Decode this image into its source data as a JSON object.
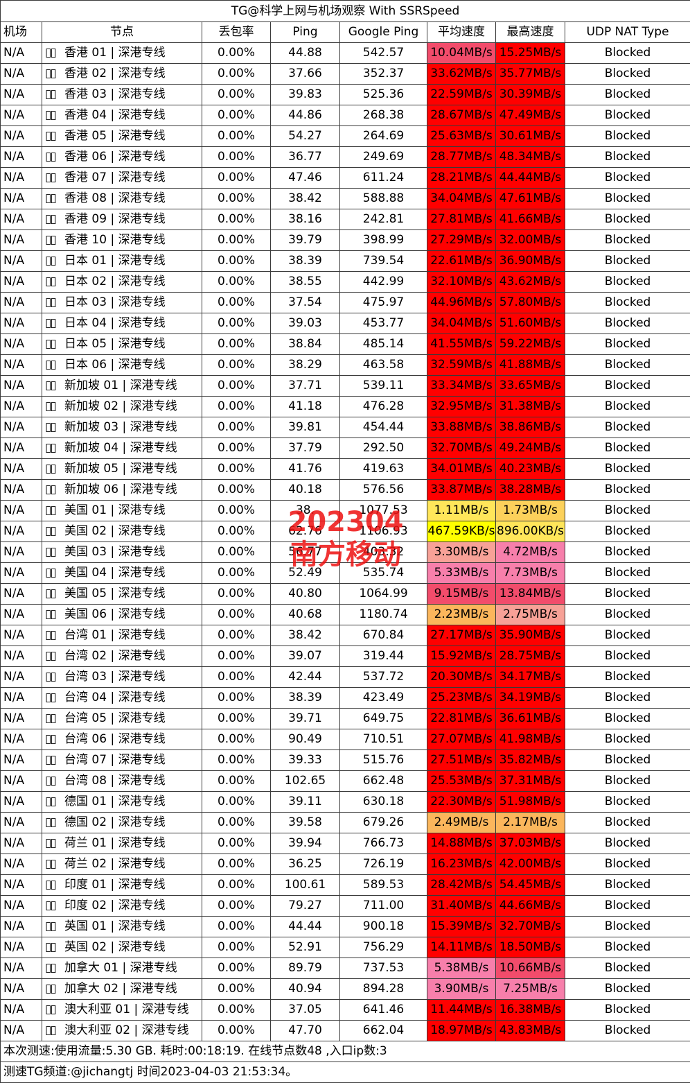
{
  "title": "TG@科学上网与机场观察 With SSRSpeed",
  "headers": [
    "机场",
    "节点",
    "丢包率",
    "Ping",
    "Google Ping",
    "平均速度",
    "最高速度",
    "UDP NAT Type"
  ],
  "flag_glyph": "▯▯",
  "colors": {
    "red": "#ff0000",
    "pink_dark": "#f24c6b",
    "pink": "#f77fab",
    "salmon": "#f7a197",
    "orange": "#fbb65c",
    "gold": "#fcd15b",
    "yellow": "#ffff00",
    "yellow2": "#ffe65a"
  },
  "rows": [
    {
      "airport": "N/A",
      "node": "香港 01 | 深港专线",
      "loss": "0.00%",
      "ping": "44.88",
      "gping": "542.57",
      "avg": "10.04MB/s",
      "max": "15.25MB/s",
      "nat": "Blocked",
      "avg_color": "pink_dark",
      "max_color": "red"
    },
    {
      "airport": "N/A",
      "node": "香港 02 | 深港专线",
      "loss": "0.00%",
      "ping": "37.66",
      "gping": "352.37",
      "avg": "33.62MB/s",
      "max": "35.77MB/s",
      "nat": "Blocked",
      "avg_color": "red",
      "max_color": "red"
    },
    {
      "airport": "N/A",
      "node": "香港 03 | 深港专线",
      "loss": "0.00%",
      "ping": "39.83",
      "gping": "525.36",
      "avg": "22.59MB/s",
      "max": "30.39MB/s",
      "nat": "Blocked",
      "avg_color": "red",
      "max_color": "red"
    },
    {
      "airport": "N/A",
      "node": "香港 04 | 深港专线",
      "loss": "0.00%",
      "ping": "44.86",
      "gping": "268.38",
      "avg": "28.67MB/s",
      "max": "47.49MB/s",
      "nat": "Blocked",
      "avg_color": "red",
      "max_color": "red"
    },
    {
      "airport": "N/A",
      "node": "香港 05 | 深港专线",
      "loss": "0.00%",
      "ping": "54.27",
      "gping": "264.69",
      "avg": "25.63MB/s",
      "max": "30.61MB/s",
      "nat": "Blocked",
      "avg_color": "red",
      "max_color": "red"
    },
    {
      "airport": "N/A",
      "node": "香港 06 | 深港专线",
      "loss": "0.00%",
      "ping": "36.77",
      "gping": "249.69",
      "avg": "28.77MB/s",
      "max": "48.34MB/s",
      "nat": "Blocked",
      "avg_color": "red",
      "max_color": "red"
    },
    {
      "airport": "N/A",
      "node": "香港 07 | 深港专线",
      "loss": "0.00%",
      "ping": "47.46",
      "gping": "611.24",
      "avg": "28.21MB/s",
      "max": "44.44MB/s",
      "nat": "Blocked",
      "avg_color": "red",
      "max_color": "red"
    },
    {
      "airport": "N/A",
      "node": "香港 08 | 深港专线",
      "loss": "0.00%",
      "ping": "38.42",
      "gping": "588.88",
      "avg": "34.04MB/s",
      "max": "47.61MB/s",
      "nat": "Blocked",
      "avg_color": "red",
      "max_color": "red"
    },
    {
      "airport": "N/A",
      "node": "香港 09 | 深港专线",
      "loss": "0.00%",
      "ping": "38.16",
      "gping": "242.81",
      "avg": "27.81MB/s",
      "max": "41.66MB/s",
      "nat": "Blocked",
      "avg_color": "red",
      "max_color": "red"
    },
    {
      "airport": "N/A",
      "node": "香港 10 | 深港专线",
      "loss": "0.00%",
      "ping": "39.79",
      "gping": "398.99",
      "avg": "27.29MB/s",
      "max": "32.00MB/s",
      "nat": "Blocked",
      "avg_color": "red",
      "max_color": "red"
    },
    {
      "airport": "N/A",
      "node": "日本 01 | 深港专线",
      "loss": "0.00%",
      "ping": "38.39",
      "gping": "739.54",
      "avg": "22.61MB/s",
      "max": "36.90MB/s",
      "nat": "Blocked",
      "avg_color": "red",
      "max_color": "red"
    },
    {
      "airport": "N/A",
      "node": "日本 02 | 深港专线",
      "loss": "0.00%",
      "ping": "38.55",
      "gping": "442.99",
      "avg": "32.10MB/s",
      "max": "43.62MB/s",
      "nat": "Blocked",
      "avg_color": "red",
      "max_color": "red"
    },
    {
      "airport": "N/A",
      "node": "日本 03 | 深港专线",
      "loss": "0.00%",
      "ping": "37.54",
      "gping": "475.97",
      "avg": "44.96MB/s",
      "max": "57.80MB/s",
      "nat": "Blocked",
      "avg_color": "red",
      "max_color": "red"
    },
    {
      "airport": "N/A",
      "node": "日本 04 | 深港专线",
      "loss": "0.00%",
      "ping": "39.03",
      "gping": "453.77",
      "avg": "34.04MB/s",
      "max": "51.60MB/s",
      "nat": "Blocked",
      "avg_color": "red",
      "max_color": "red"
    },
    {
      "airport": "N/A",
      "node": "日本 05 | 深港专线",
      "loss": "0.00%",
      "ping": "38.84",
      "gping": "485.14",
      "avg": "41.55MB/s",
      "max": "59.22MB/s",
      "nat": "Blocked",
      "avg_color": "red",
      "max_color": "red"
    },
    {
      "airport": "N/A",
      "node": "日本 06 | 深港专线",
      "loss": "0.00%",
      "ping": "38.29",
      "gping": "463.58",
      "avg": "32.59MB/s",
      "max": "41.88MB/s",
      "nat": "Blocked",
      "avg_color": "red",
      "max_color": "red"
    },
    {
      "airport": "N/A",
      "node": "新加坡 01 | 深港专线",
      "loss": "0.00%",
      "ping": "37.71",
      "gping": "539.11",
      "avg": "33.34MB/s",
      "max": "33.65MB/s",
      "nat": "Blocked",
      "avg_color": "red",
      "max_color": "red"
    },
    {
      "airport": "N/A",
      "node": "新加坡 02 | 深港专线",
      "loss": "0.00%",
      "ping": "41.18",
      "gping": "476.28",
      "avg": "32.95MB/s",
      "max": "31.38MB/s",
      "nat": "Blocked",
      "avg_color": "red",
      "max_color": "red"
    },
    {
      "airport": "N/A",
      "node": "新加坡 03 | 深港专线",
      "loss": "0.00%",
      "ping": "39.81",
      "gping": "454.44",
      "avg": "33.88MB/s",
      "max": "38.86MB/s",
      "nat": "Blocked",
      "avg_color": "red",
      "max_color": "red"
    },
    {
      "airport": "N/A",
      "node": "新加坡 04 | 深港专线",
      "loss": "0.00%",
      "ping": "37.79",
      "gping": "292.50",
      "avg": "32.70MB/s",
      "max": "49.24MB/s",
      "nat": "Blocked",
      "avg_color": "red",
      "max_color": "red"
    },
    {
      "airport": "N/A",
      "node": "新加坡 05 | 深港专线",
      "loss": "0.00%",
      "ping": "41.76",
      "gping": "419.63",
      "avg": "34.01MB/s",
      "max": "40.23MB/s",
      "nat": "Blocked",
      "avg_color": "red",
      "max_color": "red"
    },
    {
      "airport": "N/A",
      "node": "新加坡 06 | 深港专线",
      "loss": "0.00%",
      "ping": "40.18",
      "gping": "576.56",
      "avg": "33.87MB/s",
      "max": "38.28MB/s",
      "nat": "Blocked",
      "avg_color": "red",
      "max_color": "red"
    },
    {
      "airport": "N/A",
      "node": "美国 01 | 深港专线",
      "loss": "0.00%",
      "ping": "38.",
      "gping": "1077.53",
      "avg": "1.11MB/s",
      "max": "1.73MB/s",
      "nat": "Blocked",
      "avg_color": "yellow2",
      "max_color": "gold"
    },
    {
      "airport": "N/A",
      "node": "美国 02 | 深港专线",
      "loss": "0.00%",
      "ping": "62.76",
      "gping": "1106.93",
      "avg": "467.59KB/s",
      "max": "896.00KB/s",
      "nat": "Blocked",
      "avg_color": "yellow",
      "max_color": "yellow2"
    },
    {
      "airport": "N/A",
      "node": "美国 03 | 深港专线",
      "loss": "0.00%",
      "ping": "56.77",
      "gping": "403.32",
      "avg": "3.30MB/s",
      "max": "4.72MB/s",
      "nat": "Blocked",
      "avg_color": "salmon",
      "max_color": "pink"
    },
    {
      "airport": "N/A",
      "node": "美国 04 | 深港专线",
      "loss": "0.00%",
      "ping": "52.49",
      "gping": "535.74",
      "avg": "5.33MB/s",
      "max": "7.73MB/s",
      "nat": "Blocked",
      "avg_color": "pink",
      "max_color": "pink"
    },
    {
      "airport": "N/A",
      "node": "美国 05 | 深港专线",
      "loss": "0.00%",
      "ping": "40.80",
      "gping": "1064.99",
      "avg": "9.15MB/s",
      "max": "13.84MB/s",
      "nat": "Blocked",
      "avg_color": "pink_dark",
      "max_color": "pink_dark"
    },
    {
      "airport": "N/A",
      "node": "美国 06 | 深港专线",
      "loss": "0.00%",
      "ping": "40.68",
      "gping": "1180.74",
      "avg": "2.23MB/s",
      "max": "2.75MB/s",
      "nat": "Blocked",
      "avg_color": "orange",
      "max_color": "salmon"
    },
    {
      "airport": "N/A",
      "node": "台湾 01 | 深港专线",
      "loss": "0.00%",
      "ping": "38.42",
      "gping": "670.84",
      "avg": "27.17MB/s",
      "max": "35.90MB/s",
      "nat": "Blocked",
      "avg_color": "red",
      "max_color": "red"
    },
    {
      "airport": "N/A",
      "node": "台湾 02 | 深港专线",
      "loss": "0.00%",
      "ping": "39.07",
      "gping": "319.44",
      "avg": "15.92MB/s",
      "max": "28.75MB/s",
      "nat": "Blocked",
      "avg_color": "red",
      "max_color": "red"
    },
    {
      "airport": "N/A",
      "node": "台湾 03 | 深港专线",
      "loss": "0.00%",
      "ping": "42.44",
      "gping": "537.72",
      "avg": "20.30MB/s",
      "max": "34.17MB/s",
      "nat": "Blocked",
      "avg_color": "red",
      "max_color": "red"
    },
    {
      "airport": "N/A",
      "node": "台湾 04 | 深港专线",
      "loss": "0.00%",
      "ping": "38.39",
      "gping": "423.49",
      "avg": "25.23MB/s",
      "max": "34.19MB/s",
      "nat": "Blocked",
      "avg_color": "red",
      "max_color": "red"
    },
    {
      "airport": "N/A",
      "node": "台湾 05 | 深港专线",
      "loss": "0.00%",
      "ping": "39.71",
      "gping": "649.75",
      "avg": "22.81MB/s",
      "max": "36.61MB/s",
      "nat": "Blocked",
      "avg_color": "red",
      "max_color": "red"
    },
    {
      "airport": "N/A",
      "node": "台湾 06 | 深港专线",
      "loss": "0.00%",
      "ping": "90.49",
      "gping": "710.51",
      "avg": "27.07MB/s",
      "max": "41.98MB/s",
      "nat": "Blocked",
      "avg_color": "red",
      "max_color": "red"
    },
    {
      "airport": "N/A",
      "node": "台湾 07 | 深港专线",
      "loss": "0.00%",
      "ping": "39.33",
      "gping": "515.76",
      "avg": "27.51MB/s",
      "max": "35.82MB/s",
      "nat": "Blocked",
      "avg_color": "red",
      "max_color": "red"
    },
    {
      "airport": "N/A",
      "node": "台湾 08 | 深港专线",
      "loss": "0.00%",
      "ping": "102.65",
      "gping": "662.48",
      "avg": "25.53MB/s",
      "max": "37.31MB/s",
      "nat": "Blocked",
      "avg_color": "red",
      "max_color": "red"
    },
    {
      "airport": "N/A",
      "node": "德国 01 | 深港专线",
      "loss": "0.00%",
      "ping": "39.11",
      "gping": "630.18",
      "avg": "22.30MB/s",
      "max": "51.98MB/s",
      "nat": "Blocked",
      "avg_color": "red",
      "max_color": "red"
    },
    {
      "airport": "N/A",
      "node": "德国 02 | 深港专线",
      "loss": "0.00%",
      "ping": "39.58",
      "gping": "679.26",
      "avg": "2.49MB/s",
      "max": "2.17MB/s",
      "nat": "Blocked",
      "avg_color": "orange",
      "max_color": "orange"
    },
    {
      "airport": "N/A",
      "node": "荷兰 01 | 深港专线",
      "loss": "0.00%",
      "ping": "39.94",
      "gping": "766.73",
      "avg": "14.88MB/s",
      "max": "37.03MB/s",
      "nat": "Blocked",
      "avg_color": "red",
      "max_color": "red"
    },
    {
      "airport": "N/A",
      "node": "荷兰 02 | 深港专线",
      "loss": "0.00%",
      "ping": "36.25",
      "gping": "726.19",
      "avg": "16.23MB/s",
      "max": "42.00MB/s",
      "nat": "Blocked",
      "avg_color": "red",
      "max_color": "red"
    },
    {
      "airport": "N/A",
      "node": "印度 01 | 深港专线",
      "loss": "0.00%",
      "ping": "100.61",
      "gping": "589.53",
      "avg": "28.42MB/s",
      "max": "54.45MB/s",
      "nat": "Blocked",
      "avg_color": "red",
      "max_color": "red"
    },
    {
      "airport": "N/A",
      "node": "印度 02 | 深港专线",
      "loss": "0.00%",
      "ping": "79.27",
      "gping": "711.00",
      "avg": "31.40MB/s",
      "max": "44.66MB/s",
      "nat": "Blocked",
      "avg_color": "red",
      "max_color": "red"
    },
    {
      "airport": "N/A",
      "node": "英国 01 | 深港专线",
      "loss": "0.00%",
      "ping": "44.44",
      "gping": "900.18",
      "avg": "15.39MB/s",
      "max": "32.70MB/s",
      "nat": "Blocked",
      "avg_color": "red",
      "max_color": "red"
    },
    {
      "airport": "N/A",
      "node": "英国 02 | 深港专线",
      "loss": "0.00%",
      "ping": "52.91",
      "gping": "756.29",
      "avg": "14.11MB/s",
      "max": "18.50MB/s",
      "nat": "Blocked",
      "avg_color": "red",
      "max_color": "red"
    },
    {
      "airport": "N/A",
      "node": "加拿大 01 | 深港专线",
      "loss": "0.00%",
      "ping": "89.79",
      "gping": "737.53",
      "avg": "5.38MB/s",
      "max": "10.66MB/s",
      "nat": "Blocked",
      "avg_color": "pink",
      "max_color": "pink_dark"
    },
    {
      "airport": "N/A",
      "node": "加拿大 02 | 深港专线",
      "loss": "0.00%",
      "ping": "40.94",
      "gping": "894.28",
      "avg": "3.90MB/s",
      "max": "7.25MB/s",
      "nat": "Blocked",
      "avg_color": "pink",
      "max_color": "pink"
    },
    {
      "airport": "N/A",
      "node": "澳大利亚 01 | 深港专线",
      "loss": "0.00%",
      "ping": "37.05",
      "gping": "641.46",
      "avg": "11.44MB/s",
      "max": "16.38MB/s",
      "nat": "Blocked",
      "avg_color": "red",
      "max_color": "red"
    },
    {
      "airport": "N/A",
      "node": "澳大利亚 02 | 深港专线",
      "loss": "0.00%",
      "ping": "47.70",
      "gping": "662.04",
      "avg": "18.97MB/s",
      "max": "43.83MB/s",
      "nat": "Blocked",
      "avg_color": "red",
      "max_color": "red"
    }
  ],
  "footer_stats": "本次测速:使用流量:5.30 GB. 耗时:00:18:19. 在线节点数48 ,入口ip数:3",
  "footer_channel": "测速TG频道:@jichangtj 时间2023-04-03 21:53:34。",
  "watermark": {
    "line1": "202304",
    "line2": "南方移动"
  }
}
